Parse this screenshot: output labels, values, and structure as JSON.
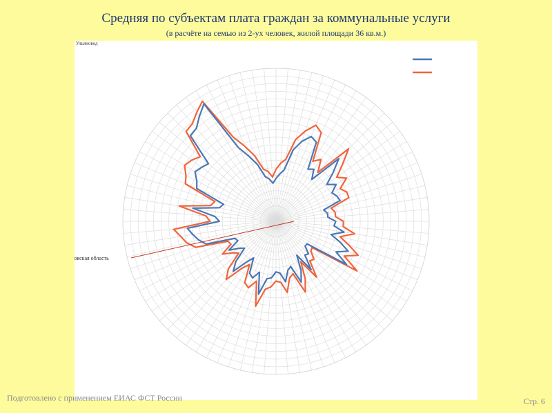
{
  "page": {
    "title": "Средняя по субъектам плата граждан за коммунальные услуги",
    "subtitle": "(в расчёте на семью из 2-ух человек, жилой площади 36 кв.м.)",
    "footer_left": "Подготовлено с применением ЕИАС ФСТ России",
    "footer_right": "Стр. 6"
  },
  "chart_data": {
    "type": "radar",
    "title": "Средняя по субъектам плата граждан за коммунальные услуги",
    "subtitle": "(в расчёте на семью из 2-ух человек, жилой площади 36 кв.м.)",
    "corner_label": "Ульяновод",
    "highlight_label": "Ростовская область",
    "grid": true,
    "legend_position": "top-right",
    "rmax": 100,
    "series": [
      {
        "color": "#4a77b4",
        "values": [
          28,
          31,
          34,
          48,
          55,
          60,
          58,
          40,
          42,
          36,
          58,
          49,
          41,
          46,
          41,
          43,
          44,
          32,
          34,
          34,
          39,
          38,
          45,
          37,
          44,
          51,
          44,
          54,
          25,
          25,
          30,
          29,
          39,
          26,
          36,
          43,
          31,
          33,
          40,
          34,
          33,
          37,
          38,
          49,
          35,
          40,
          38,
          28,
          33,
          43,
          37,
          27,
          30,
          36,
          28,
          29,
          48,
          52,
          55,
          58,
          37,
          40,
          55,
          38,
          36,
          56,
          58,
          62,
          60,
          58,
          79,
          80,
          85,
          90,
          54,
          46,
          39,
          30,
          28,
          25
        ]
      },
      {
        "color": "#f0643c",
        "values": [
          34,
          38,
          41,
          55,
          62,
          68,
          65,
          46,
          50,
          42,
          67,
          57,
          49,
          54,
          47,
          50,
          50,
          37,
          39,
          39,
          44,
          44,
          52,
          43,
          50,
          58,
          50,
          62,
          29,
          30,
          35,
          34,
          45,
          31,
          42,
          50,
          36,
          38,
          47,
          40,
          39,
          43,
          45,
          57,
          41,
          47,
          45,
          33,
          38,
          50,
          44,
          32,
          35,
          41,
          33,
          34,
          55,
          60,
          63,
          67,
          43,
          46,
          64,
          44,
          42,
          64,
          66,
          70,
          68,
          65,
          83,
          84,
          88,
          92,
          62,
          53,
          45,
          35,
          33,
          29
        ]
      }
    ]
  }
}
